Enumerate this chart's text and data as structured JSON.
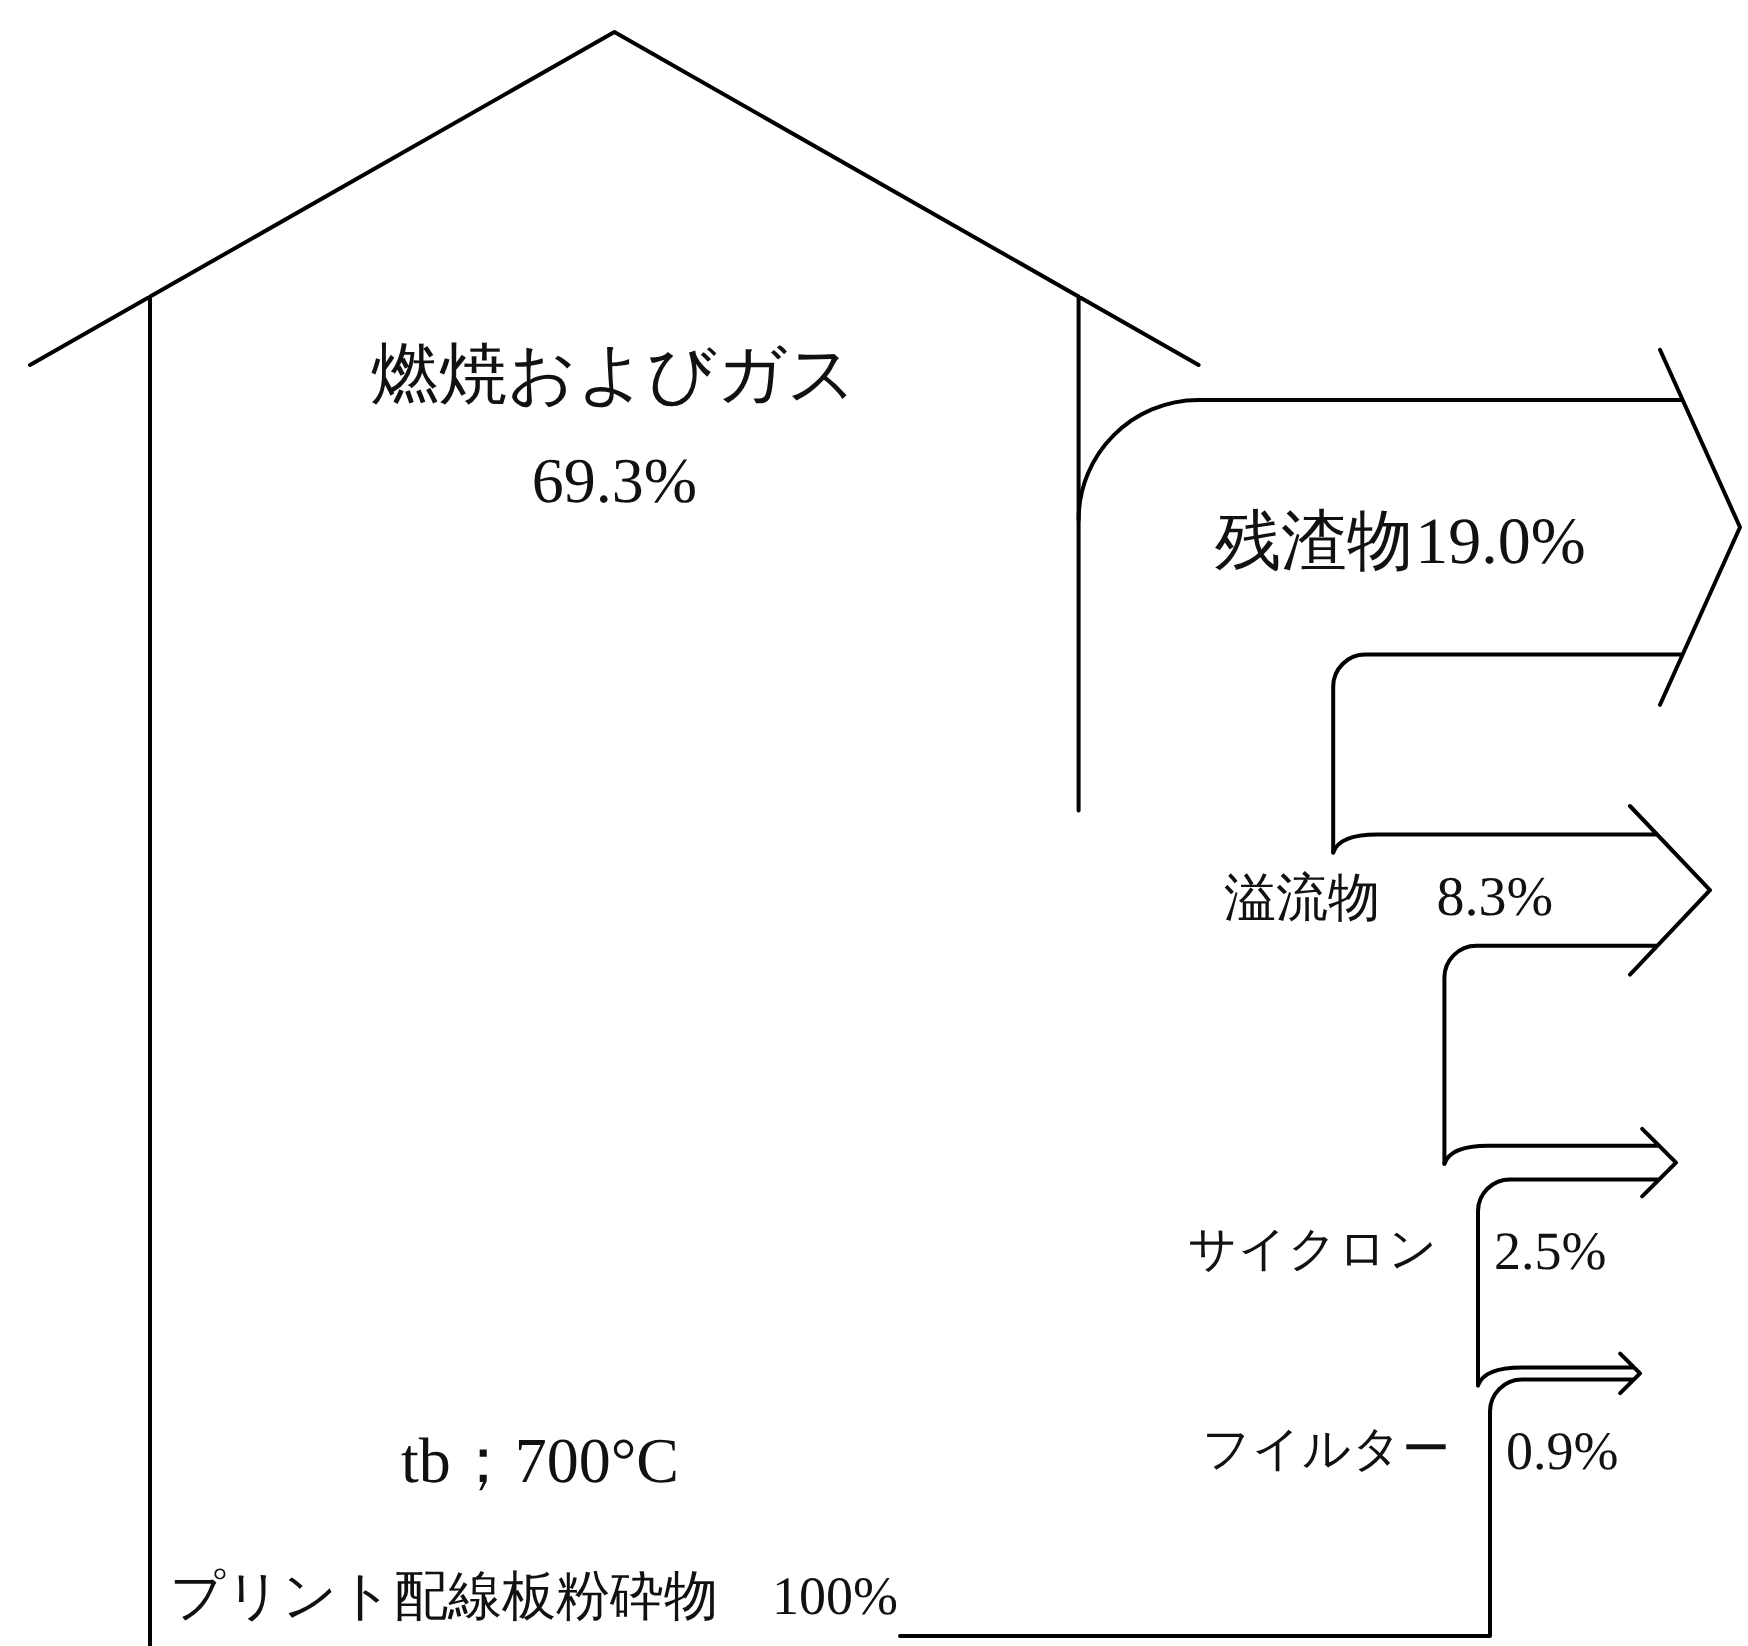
{
  "chart_data": {
    "type": "other",
    "categories": [
      "燃焼およびガス",
      "残渣物",
      "溢流物",
      "サイクロン",
      "フイルター"
    ],
    "values": [
      69.3,
      19.0,
      8.3,
      2.5,
      0.9
    ],
    "value_labels": [
      "69.3%",
      "19.0%",
      "8.3%",
      "2.5%",
      "0.9%"
    ],
    "annotations": [
      "tb；700°C",
      "プリント配線板粉砕物　100%"
    ]
  }
}
